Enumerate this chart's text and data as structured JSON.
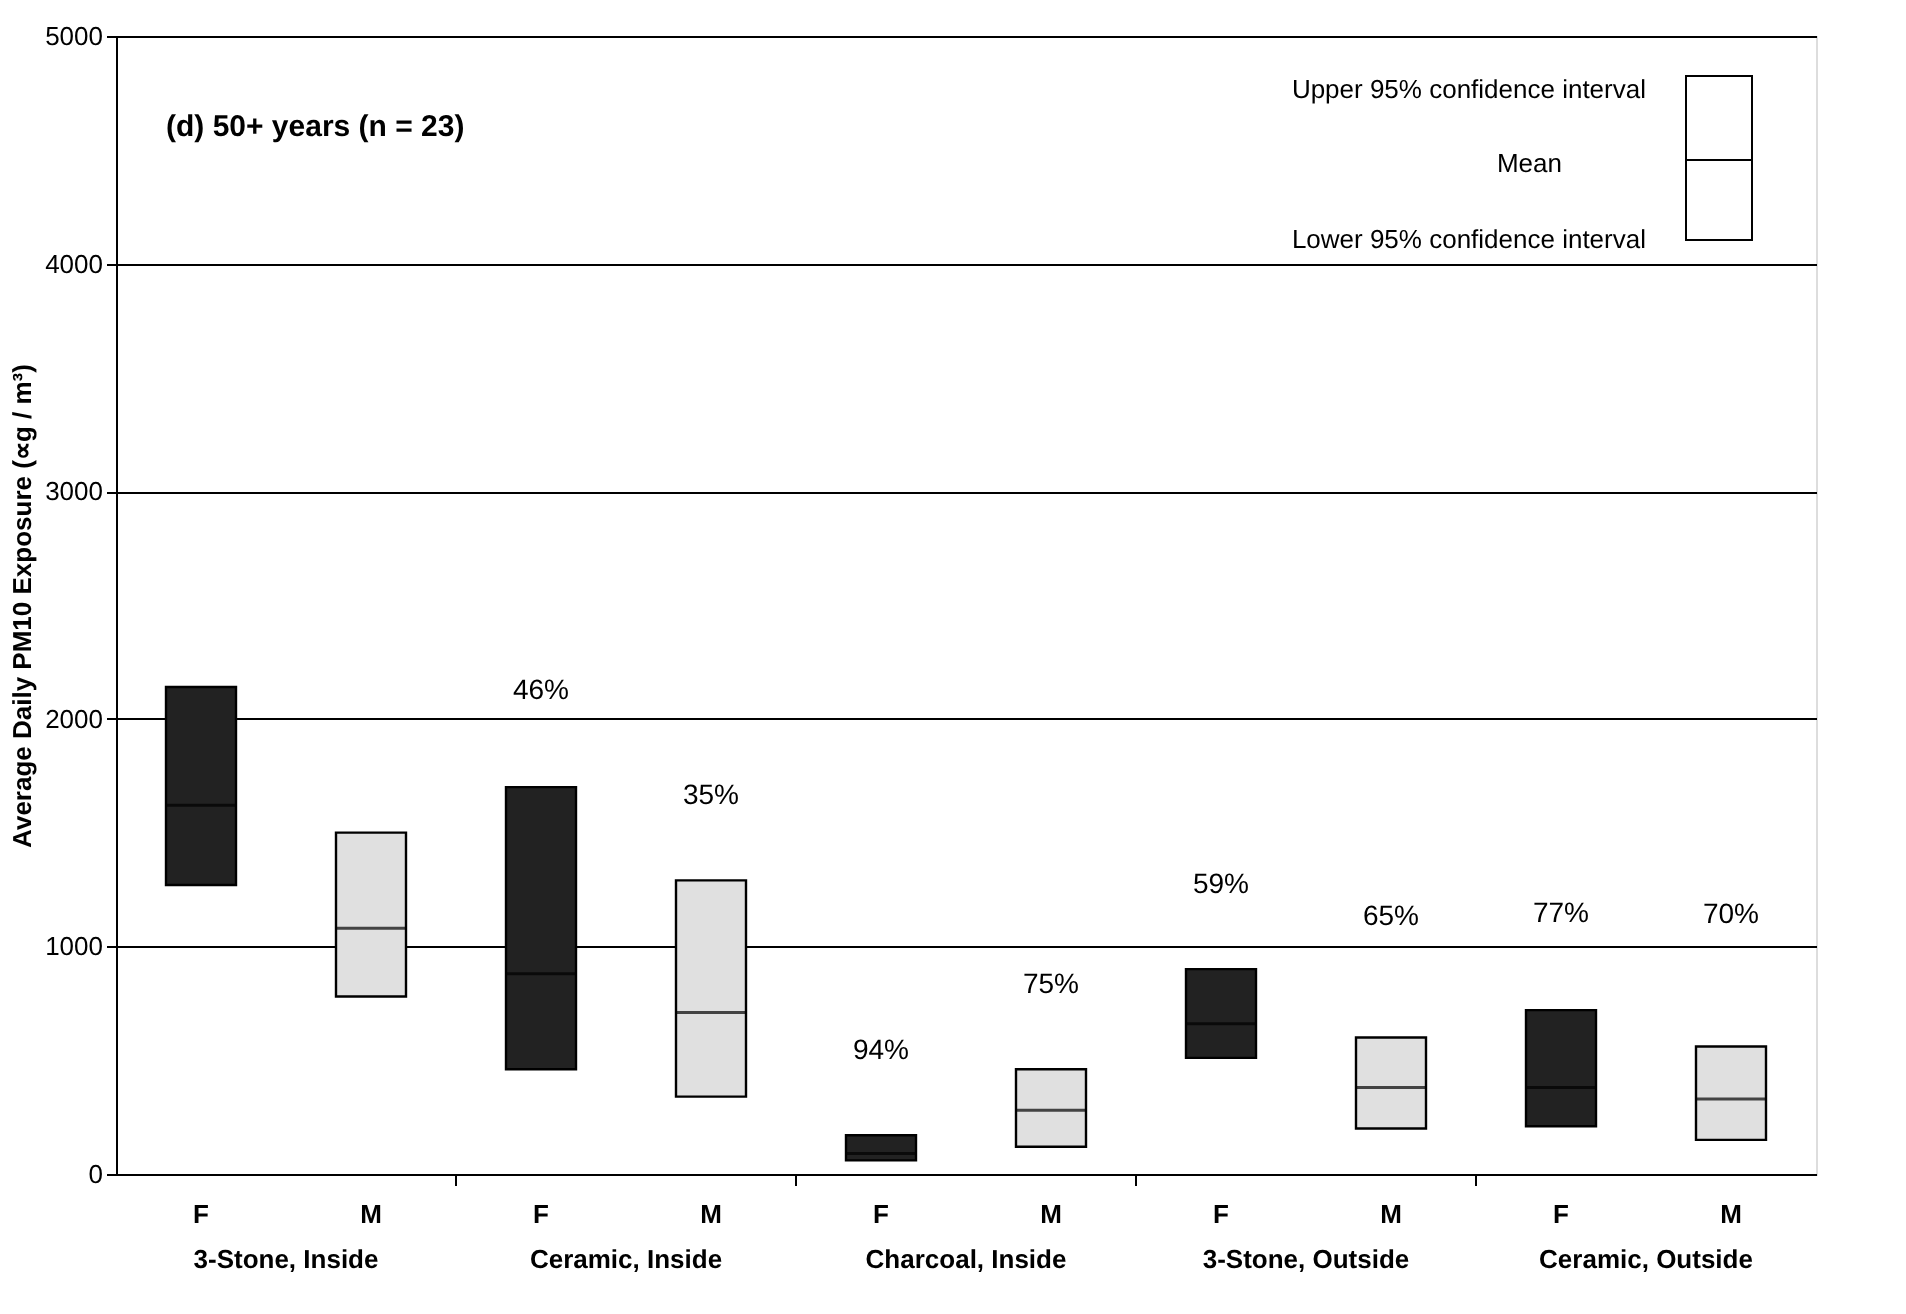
{
  "chart_data": {
    "type": "box",
    "title": "(d) 50+ years (n = 23)",
    "ylabel": "Average Daily PM10 Exposure (∝g / m³)",
    "categories": [
      "F",
      "M",
      "F",
      "M",
      "F",
      "M",
      "F",
      "M",
      "F",
      "M"
    ],
    "boxes": [
      {
        "low": 1270,
        "q1": 1270,
        "median": 1620,
        "q3": 2140,
        "high": 2140
      },
      {
        "low": 780,
        "q1": 780,
        "median": 1080,
        "q3": 1500,
        "high": 1500
      },
      {
        "low": 460,
        "q1": 460,
        "median": 880,
        "q3": 1700,
        "high": 1700
      },
      {
        "low": 340,
        "q1": 340,
        "median": 710,
        "q3": 1290,
        "high": 1290
      },
      {
        "low": 60,
        "q1": 60,
        "median": 90,
        "q3": 170,
        "high": 170
      },
      {
        "low": 120,
        "q1": 120,
        "median": 280,
        "q3": 460,
        "high": 460
      },
      {
        "low": 510,
        "q1": 510,
        "median": 660,
        "q3": 900,
        "high": 900
      },
      {
        "low": 200,
        "q1": 200,
        "median": 380,
        "q3": 600,
        "high": 600
      },
      {
        "low": 210,
        "q1": 210,
        "median": 380,
        "q3": 720,
        "high": 720
      },
      {
        "low": 150,
        "q1": 150,
        "median": 330,
        "q3": 560,
        "high": 560
      }
    ],
    "colors": [
      "#222222",
      "#e0e0e0",
      "#222222",
      "#e0e0e0",
      "#222222",
      "#e0e0e0",
      "#222222",
      "#e0e0e0",
      "#222222",
      "#e0e0e0"
    ],
    "value_labels": [
      null,
      null,
      "46%",
      "35%",
      "94%",
      "75%",
      "59%",
      "65%",
      "77%",
      "70%"
    ],
    "annotations": [
      "Upper 95% confidence interval",
      "Mean",
      "Lower 95% confidence interval",
      "3-Stone, Inside",
      "Ceramic, Inside",
      "Charcoal, Inside",
      "3-Stone, Outside",
      "Ceramic, Outside"
    ],
    "ylim": [
      0,
      5000
    ],
    "yticks": [
      0,
      1000,
      2000,
      3000,
      4000,
      5000
    ],
    "grid": "y"
  }
}
